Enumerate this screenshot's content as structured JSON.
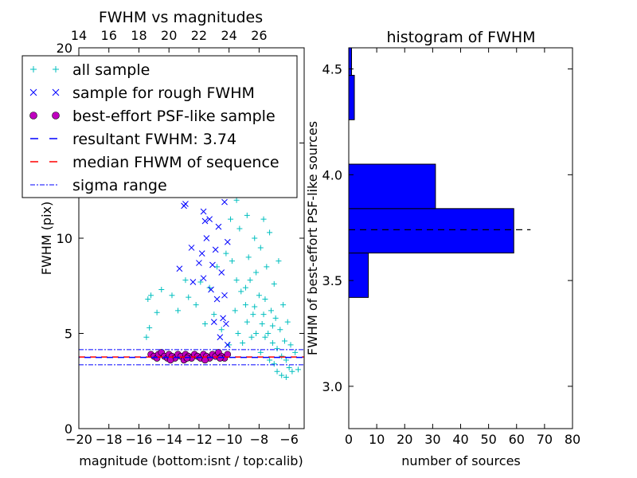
{
  "chart_data": [
    {
      "type": "scatter",
      "title": "FWHM vs magnitudes",
      "xlabel": "magnitude (bottom:isnt / top:calib)",
      "ylabel": "FWHM (pix)",
      "xlim": [
        -20,
        -5
      ],
      "ylim": [
        0,
        20
      ],
      "x_ticks": [
        "−20",
        "−18",
        "−16",
        "−14",
        "−12",
        "−10",
        "−8",
        "−6"
      ],
      "x_tick_values": [
        -20,
        -18,
        -16,
        -14,
        -12,
        -10,
        -8,
        -6
      ],
      "y_ticks": [
        "0",
        "5",
        "10",
        "15",
        "20"
      ],
      "y_tick_values": [
        0,
        5,
        10,
        15,
        20
      ],
      "top_axis_ticks": [
        "14",
        "16",
        "18",
        "20",
        "22",
        "24",
        "26"
      ],
      "top_axis_values": [
        14,
        16,
        18,
        20,
        22,
        24,
        26
      ],
      "top_axis_offset": 34,
      "legend": {
        "placement": "top-left",
        "entries": [
          {
            "marker": "+",
            "color": "#00bfbf",
            "label": "all sample"
          },
          {
            "marker": "x",
            "color": "#0000ff",
            "label": "sample for rough FWHM"
          },
          {
            "marker": "o",
            "color": "#bf00bf",
            "label": "best-effort PSF-like sample"
          },
          {
            "marker": "dash",
            "color": "#0000ff",
            "label": "resultant FWHM: 3.74"
          },
          {
            "marker": "dash",
            "color": "#ff0000",
            "label": "median FHWM of sequence"
          },
          {
            "marker": "dashdot",
            "color": "#0000ff",
            "label": "sigma range"
          }
        ]
      },
      "reference_lines": {
        "resultant": 3.74,
        "median": 3.76,
        "sigma_upper": 4.15,
        "sigma_lower": 3.35
      },
      "series": [
        {
          "name": "all sample",
          "color": "#00bfbf",
          "marker": "+",
          "points": [
            [
              -15.5,
              4.8
            ],
            [
              -15.3,
              5.3
            ],
            [
              -15.4,
              6.8
            ],
            [
              -15.2,
              7.0
            ],
            [
              -14.8,
              6.1
            ],
            [
              -14.5,
              7.3
            ],
            [
              -13.8,
              7.0
            ],
            [
              -13.4,
              6.2
            ],
            [
              -12.9,
              7.8
            ],
            [
              -12.7,
              6.9
            ],
            [
              -12.2,
              6.5
            ],
            [
              -11.9,
              7.7
            ],
            [
              -11.6,
              5.5
            ],
            [
              -11.3,
              7.4
            ],
            [
              -11.0,
              6.0
            ],
            [
              -10.8,
              8.5
            ],
            [
              -10.5,
              5.2
            ],
            [
              -10.2,
              9.2
            ],
            [
              -10.0,
              4.4
            ],
            [
              -9.8,
              8.8
            ],
            [
              -9.5,
              12.0
            ],
            [
              -9.3,
              10.5
            ],
            [
              -9.2,
              7.2
            ],
            [
              -9.0,
              13.5
            ],
            [
              -8.9,
              6.5
            ],
            [
              -8.8,
              11.2
            ],
            [
              -8.7,
              9.0
            ],
            [
              -8.6,
              7.8
            ],
            [
              -8.5,
              14.0
            ],
            [
              -8.4,
              6.0
            ],
            [
              -8.3,
              10.0
            ],
            [
              -8.2,
              8.2
            ],
            [
              -8.1,
              12.5
            ],
            [
              -8.0,
              7.0
            ],
            [
              -7.9,
              9.5
            ],
            [
              -7.8,
              5.5
            ],
            [
              -7.7,
              11.0
            ],
            [
              -7.6,
              6.8
            ],
            [
              -7.5,
              8.5
            ],
            [
              -7.4,
              5.0
            ],
            [
              -7.3,
              10.3
            ],
            [
              -7.2,
              6.2
            ],
            [
              -7.1,
              4.5
            ],
            [
              -7.0,
              7.6
            ],
            [
              -6.9,
              5.8
            ],
            [
              -6.8,
              4.2
            ],
            [
              -6.7,
              8.8
            ],
            [
              -6.6,
              5.2
            ],
            [
              -6.5,
              3.8
            ],
            [
              -6.4,
              6.5
            ],
            [
              -6.3,
              4.6
            ],
            [
              -6.2,
              3.6
            ],
            [
              -6.1,
              5.6
            ],
            [
              -6.0,
              3.2
            ],
            [
              -5.9,
              4.4
            ],
            [
              -5.8,
              3.0
            ],
            [
              -5.6,
              4.0
            ],
            [
              -5.4,
              3.1
            ],
            [
              -9.6,
              6.2
            ],
            [
              -9.4,
              5.0
            ],
            [
              -9.1,
              4.5
            ],
            [
              -8.8,
              5.6
            ],
            [
              -8.5,
              4.8
            ],
            [
              -8.2,
              5.0
            ],
            [
              -7.9,
              4.0
            ],
            [
              -7.6,
              4.8
            ],
            [
              -7.3,
              3.6
            ],
            [
              -7.0,
              3.4
            ],
            [
              -6.8,
              3.0
            ],
            [
              -6.5,
              2.8
            ],
            [
              -6.2,
              2.7
            ],
            [
              -9.7,
              15.5
            ],
            [
              -9.2,
              17.0
            ],
            [
              -8.8,
              16.0
            ],
            [
              -8.4,
              18.5
            ],
            [
              -8.0,
              16.5
            ],
            [
              -7.6,
              15.2
            ],
            [
              -7.2,
              14.5
            ],
            [
              -6.9,
              13.0
            ],
            [
              -9.9,
              11.0
            ],
            [
              -9.5,
              7.8
            ],
            [
              -8.9,
              7.4
            ],
            [
              -8.3,
              6.4
            ],
            [
              -7.7,
              6.0
            ],
            [
              -7.1,
              5.4
            ]
          ]
        },
        {
          "name": "sample for rough FWHM",
          "color": "#0000ff",
          "marker": "x",
          "points": [
            [
              -13.0,
              11.7
            ],
            [
              -12.9,
              11.8
            ],
            [
              -11.7,
              11.4
            ],
            [
              -11.6,
              10.9
            ],
            [
              -11.5,
              10.0
            ],
            [
              -11.3,
              11.0
            ],
            [
              -11.1,
              8.6
            ],
            [
              -10.9,
              9.4
            ],
            [
              -10.7,
              10.6
            ],
            [
              -10.5,
              8.2
            ],
            [
              -10.3,
              11.9
            ],
            [
              -10.1,
              9.8
            ],
            [
              -11.8,
              9.2
            ],
            [
              -12.0,
              8.7
            ],
            [
              -12.5,
              9.5
            ],
            [
              -13.3,
              8.4
            ],
            [
              -12.4,
              7.7
            ],
            [
              -11.2,
              7.3
            ],
            [
              -10.8,
              6.8
            ],
            [
              -10.4,
              5.8
            ],
            [
              -10.2,
              5.5
            ],
            [
              -10.6,
              4.8
            ],
            [
              -11.0,
              5.6
            ],
            [
              -10.1,
              4.4
            ],
            [
              -11.7,
              7.9
            ],
            [
              -10.3,
              7.0
            ]
          ]
        },
        {
          "name": "best-effort PSF-like sample",
          "color": "#bf00bf",
          "marker": "o",
          "points": [
            [
              -15.2,
              3.9
            ],
            [
              -15.0,
              3.8
            ],
            [
              -14.8,
              3.7
            ],
            [
              -14.7,
              3.9
            ],
            [
              -14.5,
              4.0
            ],
            [
              -14.3,
              3.8
            ],
            [
              -14.1,
              3.7
            ],
            [
              -14.0,
              3.9
            ],
            [
              -13.8,
              3.8
            ],
            [
              -13.6,
              3.7
            ],
            [
              -13.4,
              3.9
            ],
            [
              -13.2,
              3.8
            ],
            [
              -13.0,
              3.6
            ],
            [
              -12.9,
              3.9
            ],
            [
              -12.7,
              3.8
            ],
            [
              -12.5,
              3.7
            ],
            [
              -12.3,
              3.9
            ],
            [
              -12.1,
              3.8
            ],
            [
              -11.9,
              3.7
            ],
            [
              -11.7,
              3.9
            ],
            [
              -11.5,
              3.8
            ],
            [
              -11.3,
              3.7
            ],
            [
              -11.1,
              3.9
            ],
            [
              -10.9,
              3.8
            ],
            [
              -10.7,
              4.0
            ],
            [
              -10.5,
              3.8
            ],
            [
              -10.3,
              3.7
            ],
            [
              -10.1,
              3.9
            ],
            [
              -13.9,
              3.6
            ],
            [
              -12.8,
              3.7
            ],
            [
              -11.6,
              3.6
            ],
            [
              -10.6,
              3.7
            ]
          ]
        }
      ]
    },
    {
      "type": "bar",
      "orientation": "horizontal",
      "title": "histogram of FWHM",
      "xlabel": "number of sources",
      "ylabel": "FWHM of best-effort PSF-like sources",
      "xlim": [
        0,
        80
      ],
      "ylim": [
        2.8,
        4.6
      ],
      "x_ticks": [
        "0",
        "10",
        "20",
        "30",
        "40",
        "50",
        "60",
        "70",
        "80"
      ],
      "x_tick_values": [
        0,
        10,
        20,
        30,
        40,
        50,
        60,
        70,
        80
      ],
      "y_ticks": [
        "3.0",
        "3.5",
        "4.0",
        "4.5"
      ],
      "y_tick_values": [
        3.0,
        3.5,
        4.0,
        4.5
      ],
      "bar_color": "#0000ff",
      "bins": [
        {
          "from": 3.42,
          "to": 3.63,
          "count": 7
        },
        {
          "from": 3.63,
          "to": 3.84,
          "count": 59
        },
        {
          "from": 3.84,
          "to": 4.05,
          "count": 31
        },
        {
          "from": 4.26,
          "to": 4.47,
          "count": 2
        },
        {
          "from": 4.47,
          "to": 4.68,
          "count": 1
        }
      ],
      "reference_line": {
        "value": 3.74,
        "x_range": [
          0,
          65
        ]
      }
    }
  ]
}
